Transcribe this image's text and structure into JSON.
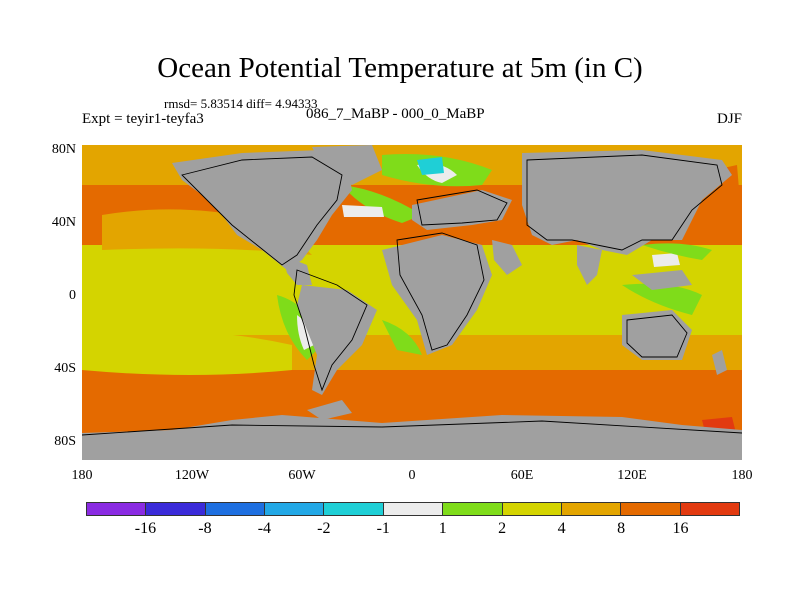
{
  "title": "Ocean Potential Temperature at 5m (in C)",
  "stats": "rmsd= 5.83514 diff= 4.94333",
  "experiment_label": "Expt = teyir1-teyfa3",
  "experiments": "086_7_MaBP - 000_0_MaBP",
  "season": "DJF",
  "y_labels": [
    "80N",
    "40N",
    "0",
    "40S",
    "80S"
  ],
  "x_labels": [
    "180",
    "120W",
    "60W",
    "0",
    "60E",
    "120E",
    "180"
  ],
  "legend": {
    "colors": [
      "#8a2be2",
      "#3b2bd9",
      "#1e6fe0",
      "#22a8e6",
      "#1fcfd6",
      "#ececec",
      "#7fdc1a",
      "#d4d400",
      "#e3a500",
      "#e46a00",
      "#e23a10"
    ],
    "labels": [
      "-16",
      "-8",
      "-4",
      "-2",
      "-1",
      "1",
      "2",
      "4",
      "8",
      "16"
    ],
    "label_color": "#000000"
  },
  "colors": {
    "land": "#a0a0a0",
    "warm": "#e46a00",
    "medium": "#e3a500",
    "mild": "#d4d400",
    "cool": "#7fdc1a",
    "neutral": "#ececec",
    "cold": "#1fcfd6"
  }
}
